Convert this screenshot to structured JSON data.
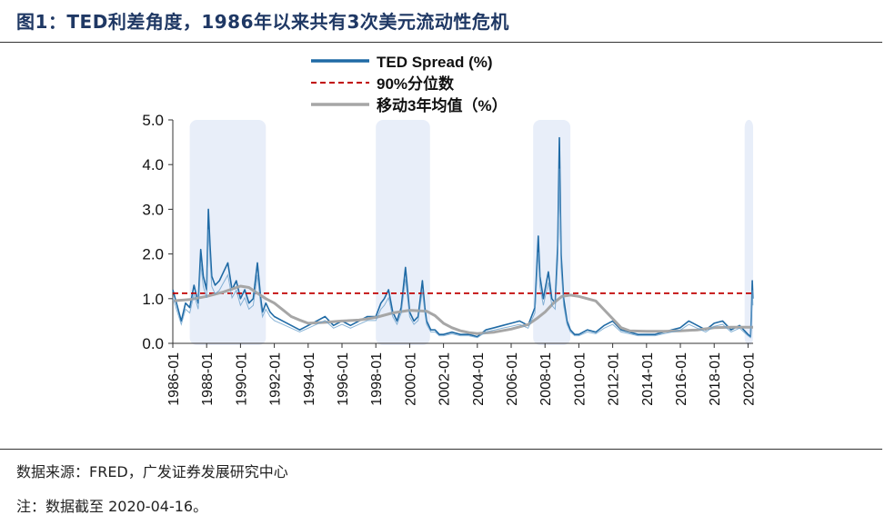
{
  "figure": {
    "title": "图1：TED利差角度，1986年以来共有3次美元流动性危机",
    "source": "数据来源：FRED，广发证券发展研究中心",
    "note": "注：数据截至 2020-04-16。"
  },
  "colors": {
    "ted": "#1f6aa5",
    "ted_light": "#6aa0cc",
    "p90": "#c00000",
    "ma3": "#a6a6a6",
    "crisis_band": "#e8eef9",
    "title": "#1f3864"
  },
  "chart_data": {
    "type": "line",
    "title": "",
    "xlabel": "",
    "ylabel": "",
    "ylim": [
      0,
      5
    ],
    "yticks": [
      "0.0",
      "1.0",
      "2.0",
      "3.0",
      "4.0",
      "5.0"
    ],
    "xlim": [
      1986.0,
      2020.3
    ],
    "xticks": [
      "1986-01",
      "1988-01",
      "1990-01",
      "1992-01",
      "1994-01",
      "1996-01",
      "1998-01",
      "2000-01",
      "2002-01",
      "2004-01",
      "2006-01",
      "2008-01",
      "2010-01",
      "2012-01",
      "2014-01",
      "2016-01",
      "2018-01",
      "2020-01"
    ],
    "legend_position": "top-center",
    "grid": false,
    "crisis_periods": [
      [
        1987.0,
        1991.5
      ],
      [
        1998.0,
        2001.2
      ],
      [
        2007.3,
        2009.5
      ],
      [
        2019.8,
        2020.3
      ]
    ],
    "series": [
      {
        "name": "TED Spread (%)",
        "style": "solid",
        "x": [
          1986.0,
          1986.25,
          1986.5,
          1986.75,
          1987.0,
          1987.25,
          1987.5,
          1987.65,
          1987.8,
          1988.0,
          1988.1,
          1988.2,
          1988.3,
          1988.5,
          1988.75,
          1989.0,
          1989.25,
          1989.5,
          1989.75,
          1990.0,
          1990.25,
          1990.5,
          1990.75,
          1991.0,
          1991.2,
          1991.3,
          1991.5,
          1991.75,
          1992.0,
          1992.5,
          1993.0,
          1993.5,
          1994.0,
          1994.5,
          1995.0,
          1995.5,
          1996.0,
          1996.5,
          1997.0,
          1997.5,
          1998.0,
          1998.3,
          1998.5,
          1998.75,
          1999.0,
          1999.25,
          1999.5,
          1999.75,
          2000.0,
          2000.25,
          2000.5,
          2000.75,
          2000.9,
          2001.0,
          2001.25,
          2001.5,
          2001.75,
          2002.0,
          2002.5,
          2003.0,
          2003.5,
          2004.0,
          2004.5,
          2005.0,
          2005.5,
          2006.0,
          2006.5,
          2007.0,
          2007.4,
          2007.6,
          2007.7,
          2007.9,
          2008.0,
          2008.2,
          2008.4,
          2008.6,
          2008.75,
          2008.85,
          2008.95,
          2009.1,
          2009.3,
          2009.5,
          2009.75,
          2010.0,
          2010.5,
          2011.0,
          2011.5,
          2012.0,
          2012.5,
          2013.0,
          2013.5,
          2014.0,
          2014.5,
          2015.0,
          2015.5,
          2016.0,
          2016.5,
          2017.0,
          2017.5,
          2018.0,
          2018.5,
          2019.0,
          2019.5,
          2020.0,
          2020.15,
          2020.2,
          2020.25,
          2020.29
        ],
        "y": [
          1.2,
          0.85,
          0.5,
          0.9,
          0.8,
          1.3,
          0.9,
          2.1,
          1.5,
          1.2,
          3.0,
          2.2,
          1.5,
          1.3,
          1.4,
          1.6,
          1.8,
          1.2,
          1.4,
          1.0,
          1.2,
          0.9,
          1.0,
          1.8,
          1.0,
          0.7,
          0.9,
          0.7,
          0.6,
          0.5,
          0.4,
          0.3,
          0.4,
          0.5,
          0.6,
          0.4,
          0.5,
          0.4,
          0.5,
          0.6,
          0.6,
          0.9,
          1.0,
          1.2,
          0.7,
          0.5,
          0.8,
          1.7,
          0.7,
          0.5,
          0.6,
          1.4,
          0.8,
          0.5,
          0.3,
          0.3,
          0.2,
          0.2,
          0.25,
          0.2,
          0.2,
          0.15,
          0.3,
          0.35,
          0.4,
          0.45,
          0.5,
          0.4,
          0.8,
          2.4,
          1.5,
          1.0,
          1.2,
          1.6,
          1.0,
          0.9,
          2.2,
          4.6,
          2.0,
          1.0,
          0.5,
          0.3,
          0.2,
          0.2,
          0.3,
          0.25,
          0.4,
          0.5,
          0.3,
          0.25,
          0.2,
          0.2,
          0.2,
          0.25,
          0.3,
          0.35,
          0.5,
          0.4,
          0.3,
          0.45,
          0.5,
          0.3,
          0.4,
          0.2,
          0.15,
          0.6,
          1.4,
          1.0
        ]
      },
      {
        "name": "90%分位数",
        "style": "dashed",
        "x": [
          1986.0,
          2020.3
        ],
        "y": [
          1.12,
          1.12
        ]
      },
      {
        "name": "移动3年均值（%）",
        "style": "solid",
        "x": [
          1986.0,
          1987.0,
          1988.0,
          1989.0,
          1990.0,
          1990.5,
          1991.0,
          1991.5,
          1992.0,
          1992.5,
          1993.0,
          1993.5,
          1994.0,
          1995.0,
          1996.0,
          1997.0,
          1998.0,
          1999.0,
          2000.0,
          2001.0,
          2001.5,
          2002.0,
          2002.5,
          2003.0,
          2003.5,
          2004.0,
          2005.0,
          2006.0,
          2007.0,
          2007.5,
          2008.0,
          2008.5,
          2009.0,
          2009.5,
          2010.0,
          2011.0,
          2011.5,
          2012.0,
          2012.5,
          2013.0,
          2014.0,
          2015.0,
          2016.0,
          2017.0,
          2018.0,
          2019.0,
          2020.0,
          2020.3
        ],
        "y": [
          0.95,
          0.98,
          1.05,
          1.15,
          1.28,
          1.25,
          1.12,
          1.0,
          0.9,
          0.75,
          0.6,
          0.52,
          0.45,
          0.47,
          0.5,
          0.52,
          0.58,
          0.68,
          0.74,
          0.72,
          0.62,
          0.45,
          0.35,
          0.28,
          0.24,
          0.22,
          0.25,
          0.32,
          0.42,
          0.55,
          0.7,
          0.9,
          1.05,
          1.08,
          1.05,
          0.95,
          0.75,
          0.55,
          0.35,
          0.28,
          0.27,
          0.27,
          0.28,
          0.3,
          0.35,
          0.36,
          0.36,
          0.36
        ]
      }
    ]
  }
}
